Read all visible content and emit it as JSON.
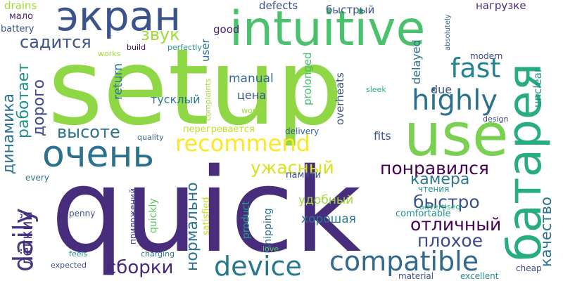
{
  "cloud": {
    "words": [
      {
        "text": "setup",
        "color": "#8fd744"
      },
      {
        "text": "quick",
        "color": "#472d7b"
      },
      {
        "text": "intuitive",
        "color": "#4ac16d"
      },
      {
        "text": "use",
        "color": "#7ad151"
      },
      {
        "text": "экран",
        "color": "#3b528b"
      },
      {
        "text": "очень",
        "color": "#2c728e"
      },
      {
        "text": "батарея",
        "color": "#27ad81"
      },
      {
        "text": "compatible",
        "color": "#31688e"
      },
      {
        "text": "device",
        "color": "#2a788e"
      },
      {
        "text": "highly",
        "color": "#2c728e"
      },
      {
        "text": "fast",
        "color": "#25858e"
      },
      {
        "text": "recommend",
        "color": "#fde725"
      },
      {
        "text": "daily",
        "color": "#443a83"
      },
      {
        "text": "сборки",
        "color": "#482878"
      },
      {
        "text": "понравился",
        "color": "#440154"
      },
      {
        "text": "отличный",
        "color": "#440154"
      },
      {
        "text": "быстро",
        "color": "#3b528b"
      },
      {
        "text": "плохое",
        "color": "#3e4989"
      },
      {
        "text": "камера",
        "color": "#2a788e"
      },
      {
        "text": "ужасный",
        "color": "#d8e219"
      },
      {
        "text": "высоте",
        "color": "#2c728e"
      },
      {
        "text": "качество",
        "color": "#2c728e"
      },
      {
        "text": "нормально",
        "color": "#2c728e"
      },
      {
        "text": "динамика",
        "color": "#2c728e"
      },
      {
        "text": "работает",
        "color": "#21918c"
      },
      {
        "text": "дорого",
        "color": "#3e4989"
      },
      {
        "text": "садится",
        "color": "#3b528b"
      },
      {
        "text": "звук",
        "color": "#a0da39"
      },
      {
        "text": "лёгкий",
        "color": "#482878"
      },
      {
        "text": "удобный",
        "color": "#a0da39"
      },
      {
        "text": "хорошая",
        "color": "#2a788e"
      },
      {
        "text": "цена",
        "color": "#3b528b"
      },
      {
        "text": "тусклый",
        "color": "#2a788e"
      },
      {
        "text": "manual",
        "color": "#31688e"
      },
      {
        "text": "return",
        "color": "#2a788e"
      },
      {
        "text": "user",
        "color": "#2c728e"
      },
      {
        "text": "good",
        "color": "#481f71"
      },
      {
        "text": "defects",
        "color": "#3b528b"
      },
      {
        "text": "быстрый",
        "color": "#3b528b"
      },
      {
        "text": "нагрузке",
        "color": "#482878"
      },
      {
        "text": "delayed",
        "color": "#2c728e"
      },
      {
        "text": "due",
        "color": "#3b528b"
      },
      {
        "text": "unclear",
        "color": "#21918c"
      },
      {
        "text": "modern",
        "color": "#3e4989"
      },
      {
        "text": "overheats",
        "color": "#3b528b"
      },
      {
        "text": "prolonged",
        "color": "#44bf70"
      },
      {
        "text": "перегревается",
        "color": "#c2df23"
      },
      {
        "text": "fits",
        "color": "#3b528b"
      },
      {
        "text": "sleek",
        "color": "#2ab07f"
      },
      {
        "text": "design",
        "color": "#3e4989"
      },
      {
        "text": "delivery",
        "color": "#33638d"
      },
      {
        "text": "worth",
        "color": "#a0da39"
      },
      {
        "text": "complaints",
        "color": "#a0da39"
      },
      {
        "text": "quality",
        "color": "#31688e"
      },
      {
        "text": "every",
        "color": "#2c728e"
      },
      {
        "text": "penny",
        "color": "#3b528b"
      },
      {
        "text": "приложений",
        "color": "#443a83"
      },
      {
        "text": "quickly",
        "color": "#5ec962"
      },
      {
        "text": "satisfied",
        "color": "#c2df23"
      },
      {
        "text": "product",
        "color": "#1fa187"
      },
      {
        "text": "shipping",
        "color": "#2c728e"
      },
      {
        "text": "памяти",
        "color": "#3b528b"
      },
      {
        "text": "чтения",
        "color": "#21918c"
      },
      {
        "text": "advertised",
        "color": "#2ab07f"
      },
      {
        "text": "comfortable",
        "color": "#21918c"
      },
      {
        "text": "material",
        "color": "#3b528b"
      },
      {
        "text": "excellent",
        "color": "#21918c"
      },
      {
        "text": "cheap",
        "color": "#3e4989"
      },
      {
        "text": "love",
        "color": "#5ec962"
      },
      {
        "text": "charging",
        "color": "#2c728e"
      },
      {
        "text": "feels",
        "color": "#21918c"
      },
      {
        "text": "expected",
        "color": "#3b528b"
      },
      {
        "text": "drains",
        "color": "#a0da39"
      },
      {
        "text": "мало",
        "color": "#481f71"
      },
      {
        "text": "battery",
        "color": "#3b528b"
      },
      {
        "text": "works",
        "color": "#a0da39"
      },
      {
        "text": "build",
        "color": "#440154"
      },
      {
        "text": "perfectly",
        "color": "#21918c"
      },
      {
        "text": "absolutely",
        "color": "#31688e"
      }
    ]
  }
}
